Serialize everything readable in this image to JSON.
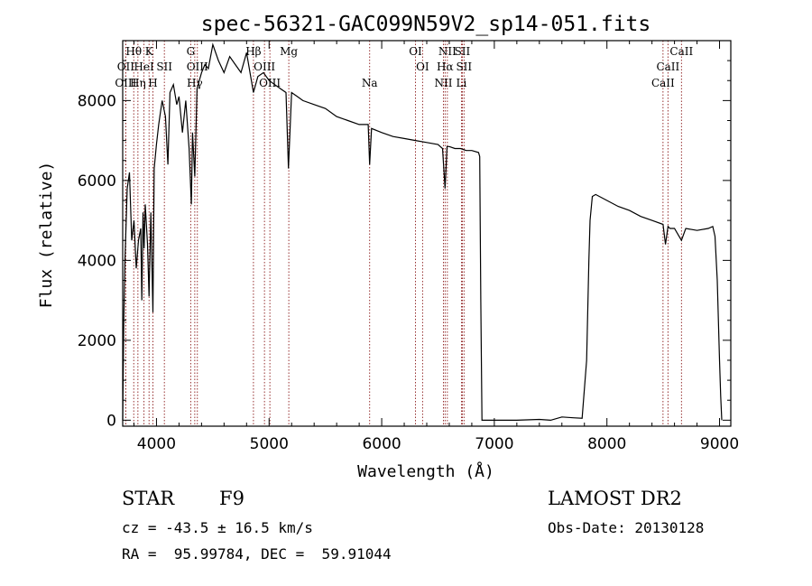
{
  "chart_data": {
    "type": "line",
    "title": "spec-56321-GAC099N59V2_sp14-051.fits",
    "xlabel": "Wavelength (Å)",
    "ylabel": "Flux (relative)",
    "xlim": [
      3700,
      9100
    ],
    "ylim": [
      -150,
      9500
    ],
    "x_ticks": [
      4000,
      5000,
      6000,
      7000,
      8000,
      9000
    ],
    "y_ticks": [
      0,
      2000,
      4000,
      6000,
      8000
    ],
    "series": [
      {
        "x": [
          3700,
          3710,
          3720,
          3740,
          3760,
          3780,
          3800,
          3820,
          3840,
          3860,
          3870,
          3880,
          3890,
          3900,
          3920,
          3934,
          3950,
          3968,
          3980,
          4000,
          4020,
          4050,
          4080,
          4101,
          4120,
          4150,
          4180,
          4200,
          4230,
          4260,
          4290,
          4310,
          4320,
          4340,
          4360,
          4380,
          4400,
          4430,
          4460,
          4500,
          4550,
          4600,
          4650,
          4700,
          4750,
          4800,
          4861,
          4900,
          4950,
          5000,
          5050,
          5100,
          5150,
          5172,
          5200,
          5250,
          5300,
          5400,
          5500,
          5600,
          5700,
          5800,
          5880,
          5893,
          5910,
          6000,
          6100,
          6200,
          6300,
          6400,
          6500,
          6540,
          6563,
          6580,
          6600,
          6650,
          6700,
          6750,
          6800,
          6860,
          6870,
          6880,
          6890,
          7000,
          7200,
          7400,
          7500,
          7600,
          7700,
          7780,
          7820,
          7840,
          7850,
          7870,
          7900,
          8000,
          8100,
          8200,
          8300,
          8400,
          8498,
          8520,
          8542,
          8560,
          8600,
          8662,
          8700,
          8800,
          8900,
          8940,
          8960,
          8980,
          9000,
          9010,
          9020
        ],
        "y": [
          0,
          2500,
          4000,
          5800,
          6200,
          4500,
          5000,
          3800,
          4500,
          4800,
          3000,
          5200,
          4300,
          5400,
          4400,
          3100,
          5200,
          2700,
          6300,
          6900,
          7400,
          8000,
          7600,
          6400,
          8200,
          8400,
          7900,
          8100,
          7200,
          8000,
          6800,
          5400,
          7200,
          6100,
          8300,
          8500,
          8700,
          8900,
          8800,
          9400,
          9000,
          8700,
          9100,
          8900,
          8700,
          9200,
          8200,
          8600,
          8700,
          8500,
          8400,
          8300,
          8200,
          6300,
          8200,
          8100,
          8000,
          7900,
          7800,
          7600,
          7500,
          7400,
          7400,
          6400,
          7300,
          7200,
          7100,
          7050,
          7000,
          6950,
          6900,
          6800,
          5800,
          6850,
          6850,
          6800,
          6800,
          6750,
          6750,
          6700,
          6600,
          3000,
          0,
          0,
          0,
          20,
          0,
          80,
          60,
          50,
          1500,
          4000,
          5000,
          5600,
          5650,
          5500,
          5350,
          5250,
          5100,
          5000,
          4900,
          4400,
          4850,
          4800,
          4800,
          4500,
          4800,
          4750,
          4800,
          4850,
          4600,
          3500,
          1500,
          600,
          0
        ]
      }
    ],
    "spectral_lines": [
      {
        "label": "Hθ",
        "wavelength": 3798,
        "row": 0
      },
      {
        "label": "K",
        "wavelength": 3934,
        "row": 0
      },
      {
        "label": "G",
        "wavelength": 4304,
        "row": 0
      },
      {
        "label": "Hβ",
        "wavelength": 4861,
        "row": 0
      },
      {
        "label": "Mg",
        "wavelength": 5175,
        "row": 0
      },
      {
        "label": "OI",
        "wavelength": 6300,
        "row": 0
      },
      {
        "label": "NII",
        "wavelength": 6583,
        "row": 0
      },
      {
        "label": "SII",
        "wavelength": 6716,
        "row": 0
      },
      {
        "label": "CaII",
        "wavelength": 8662,
        "row": 0
      },
      {
        "label": "OII",
        "wavelength": 3727,
        "row": 1
      },
      {
        "label": "HeI",
        "wavelength": 3889,
        "row": 1
      },
      {
        "label": "SII",
        "wavelength": 4070,
        "row": 1
      },
      {
        "label": "OIII",
        "wavelength": 4363,
        "row": 1
      },
      {
        "label": "OIII",
        "wavelength": 4959,
        "row": 1
      },
      {
        "label": "OI",
        "wavelength": 6363,
        "row": 1
      },
      {
        "label": "Hα",
        "wavelength": 6563,
        "row": 1
      },
      {
        "label": "SII",
        "wavelength": 6731,
        "row": 1
      },
      {
        "label": "CaII",
        "wavelength": 8542,
        "row": 1
      },
      {
        "label": "OIII",
        "wavelength": 3727,
        "row": 2
      },
      {
        "label": "Hη",
        "wavelength": 3835,
        "row": 2
      },
      {
        "label": "H",
        "wavelength": 3968,
        "row": 2
      },
      {
        "label": "Hγ",
        "wavelength": 4340,
        "row": 2
      },
      {
        "label": "OIII",
        "wavelength": 5007,
        "row": 2
      },
      {
        "label": "Na",
        "wavelength": 5893,
        "row": 2
      },
      {
        "label": "NII",
        "wavelength": 6548,
        "row": 2
      },
      {
        "label": "Li",
        "wavelength": 6708,
        "row": 2
      },
      {
        "label": "CaII",
        "wavelength": 8498,
        "row": 2
      }
    ],
    "line_color": "#000000",
    "marker_color": "#8b1a1a",
    "grid": false
  },
  "info": {
    "object_class": "STAR",
    "subclass": "F9",
    "survey": "LAMOST DR2",
    "redshift": "cz = -43.5 ± 16.5 km/s",
    "obs_date": "Obs-Date: 20130128",
    "coords": "RA =  95.99784, DEC =  59.91044"
  }
}
